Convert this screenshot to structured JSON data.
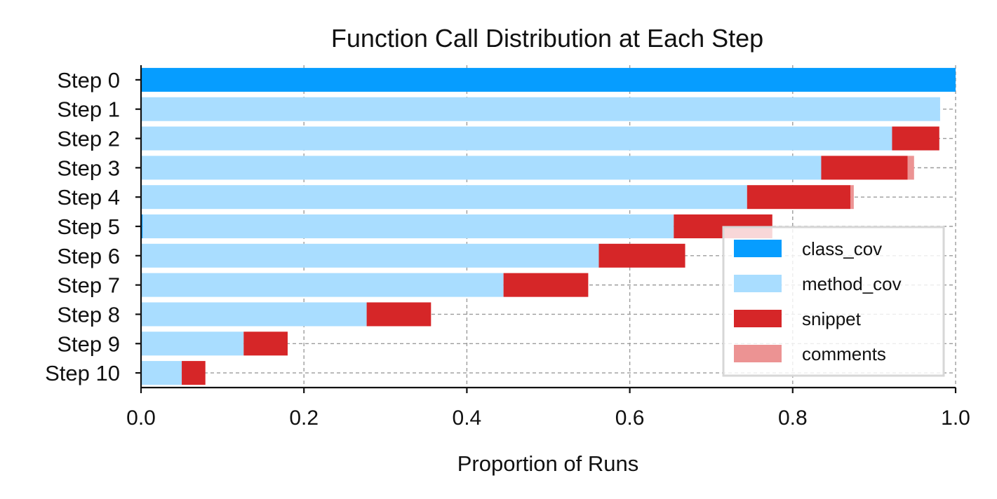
{
  "chart_data": {
    "type": "bar",
    "orientation": "horizontal",
    "stacked": true,
    "title": "Function Call Distribution at Each Step",
    "xlabel": "Proportion of Runs",
    "ylabel": "",
    "xlim": [
      0.0,
      1.0
    ],
    "xticks": [
      "0.0",
      "0.2",
      "0.4",
      "0.6",
      "0.8",
      "1.0"
    ],
    "grid": "dashed",
    "legend_position": "lower-right",
    "categories": [
      "Step 0",
      "Step 1",
      "Step 2",
      "Step 3",
      "Step 4",
      "Step 5",
      "Step 6",
      "Step 7",
      "Step 8",
      "Step 9",
      "Step 10"
    ],
    "series": [
      {
        "name": "class_cov",
        "color": "#069DFF",
        "values": [
          1.0,
          0,
          0,
          0,
          0,
          0.002,
          0,
          0,
          0,
          0,
          0
        ]
      },
      {
        "name": "method_cov",
        "color": "#A9DDFF",
        "values": [
          0,
          0.981,
          0.922,
          0.835,
          0.744,
          0.652,
          0.562,
          0.445,
          0.277,
          0.126,
          0.05
        ]
      },
      {
        "name": "snippet",
        "color": "#D62628",
        "values": [
          0,
          0,
          0.058,
          0.106,
          0.127,
          0.121,
          0.106,
          0.104,
          0.079,
          0.054,
          0.029
        ]
      },
      {
        "name": "comments",
        "color": "#EC9393",
        "values": [
          0,
          0,
          0,
          0.008,
          0.004,
          0,
          0,
          0,
          0,
          0,
          0
        ]
      }
    ]
  }
}
